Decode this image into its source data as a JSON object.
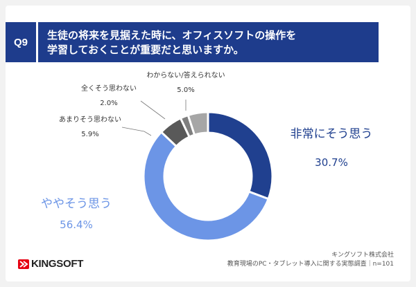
{
  "question": {
    "number": "Q9",
    "line1": "生徒の将来を見据えた時に、オフィスソフトの操作を",
    "line2": "学習しておくことが重要だと思いますか。"
  },
  "chart_data": {
    "type": "pie",
    "slices": [
      {
        "label": "非常にそう思う",
        "value": 30.7,
        "display": "30.7%",
        "color": "#20408f"
      },
      {
        "label": "ややそう思う",
        "value": 56.4,
        "display": "56.4%",
        "color": "#6c95e6"
      },
      {
        "label": "あまりそう思わない",
        "value": 5.9,
        "display": "5.9%",
        "color": "#595959"
      },
      {
        "label": "全くそう思わない",
        "value": 2.0,
        "display": "2.0%",
        "color": "#7f7f7f"
      },
      {
        "label": "わからない/答えられない",
        "value": 5.0,
        "display": "5.0%",
        "color": "#a6a6a6"
      }
    ]
  },
  "brand": {
    "logo_text": "KINGSOFT"
  },
  "source": {
    "company": "キングソフト株式会社",
    "survey": "教育現場のPC・タブレット導入に関する実態調査｜n=101"
  }
}
